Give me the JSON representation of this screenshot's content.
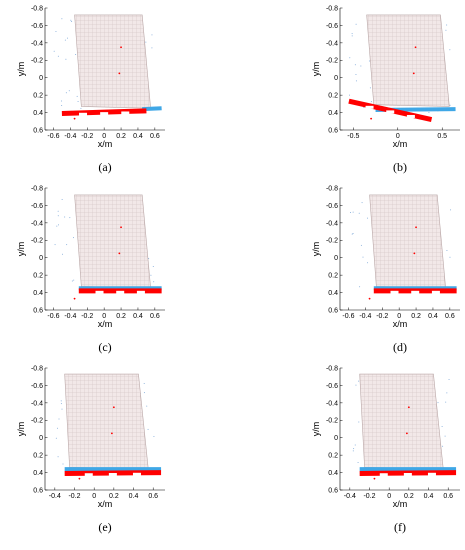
{
  "chart_data": [
    {
      "type": "scatter",
      "label": "(a)",
      "xlabel": "x/m",
      "ylabel": "y/m",
      "xlim": [
        -0.7,
        0.72
      ],
      "ylim": [
        0.6,
        -0.8
      ],
      "xticks": [
        -0.6,
        -0.4,
        -0.2,
        0,
        0.2,
        0.4,
        0.6
      ],
      "yticks": [
        -0.8,
        -0.6,
        -0.4,
        -0.2,
        0,
        0.2,
        0.4,
        0.6
      ],
      "plate": [
        [
          -0.35,
          -0.72
        ],
        [
          0.45,
          -0.72
        ],
        [
          0.55,
          0.35
        ],
        [
          -0.27,
          0.33
        ]
      ],
      "pallet": {
        "color": "#ff0000",
        "segments": [
          [
            -0.5,
            0.41,
            0.5,
            0.38
          ]
        ]
      },
      "side": {
        "color": "#3fa7e6",
        "segments": [
          [
            0.45,
            0.36,
            0.68,
            0.35
          ]
        ]
      },
      "grid": false,
      "legend": "none"
    },
    {
      "type": "scatter",
      "label": "(b)",
      "xlabel": "x/m",
      "ylabel": "y/m",
      "xlim": [
        -0.65,
        0.7
      ],
      "ylim": [
        0.6,
        -0.8
      ],
      "xticks": [
        -0.5,
        0,
        0.5
      ],
      "yticks": [
        -0.8,
        -0.6,
        -0.4,
        -0.2,
        0,
        0.2,
        0.4,
        0.6
      ],
      "plate": [
        [
          -0.35,
          -0.72
        ],
        [
          0.48,
          -0.72
        ],
        [
          0.58,
          0.33
        ],
        [
          -0.27,
          0.31
        ]
      ],
      "pallet": {
        "color": "#ff0000",
        "segments": [
          [
            -0.55,
            0.27,
            0.38,
            0.48
          ]
        ]
      },
      "side": {
        "color": "#3fa7e6",
        "segments": [
          [
            -0.25,
            0.37,
            0.65,
            0.36
          ]
        ]
      },
      "grid": false,
      "legend": "none"
    },
    {
      "type": "scatter",
      "label": "(c)",
      "xlabel": "x/m",
      "ylabel": "y/m",
      "xlim": [
        -0.7,
        0.72
      ],
      "ylim": [
        0.6,
        -0.8
      ],
      "xticks": [
        -0.6,
        -0.4,
        -0.2,
        0,
        0.2,
        0.4,
        0.6
      ],
      "yticks": [
        -0.8,
        -0.6,
        -0.4,
        -0.2,
        0,
        0.2,
        0.4,
        0.6
      ],
      "plate": [
        [
          -0.35,
          -0.72
        ],
        [
          0.45,
          -0.72
        ],
        [
          0.55,
          0.35
        ],
        [
          -0.27,
          0.33
        ]
      ],
      "pallet": {
        "color": "#ff0000",
        "segments": [
          [
            -0.3,
            0.38,
            0.68,
            0.38
          ]
        ]
      },
      "side": {
        "color": "#3fa7e6",
        "segments": [
          [
            -0.3,
            0.35,
            0.68,
            0.35
          ]
        ]
      },
      "grid": false,
      "legend": "none"
    },
    {
      "type": "scatter",
      "label": "(d)",
      "xlabel": "x/m",
      "ylabel": "y/m",
      "xlim": [
        -0.7,
        0.72
      ],
      "ylim": [
        0.6,
        -0.8
      ],
      "xticks": [
        -0.6,
        -0.4,
        -0.2,
        0,
        0.2,
        0.4,
        0.6
      ],
      "yticks": [
        -0.8,
        -0.6,
        -0.4,
        -0.2,
        0,
        0.2,
        0.4,
        0.6
      ],
      "plate": [
        [
          -0.35,
          -0.72
        ],
        [
          0.45,
          -0.72
        ],
        [
          0.55,
          0.35
        ],
        [
          -0.27,
          0.33
        ]
      ],
      "pallet": {
        "color": "#ff0000",
        "segments": [
          [
            -0.3,
            0.38,
            0.68,
            0.38
          ]
        ]
      },
      "side": {
        "color": "#3fa7e6",
        "segments": [
          [
            -0.3,
            0.35,
            0.68,
            0.35
          ]
        ]
      },
      "grid": false,
      "legend": "none"
    },
    {
      "type": "scatter",
      "label": "(e)",
      "xlabel": "x/m",
      "ylabel": "y/m",
      "xlim": [
        -0.5,
        0.72
      ],
      "ylim": [
        0.6,
        -0.8
      ],
      "xticks": [
        -0.4,
        -0.2,
        0,
        0.2,
        0.4,
        0.6
      ],
      "yticks": [
        -0.8,
        -0.6,
        -0.4,
        -0.2,
        0,
        0.2,
        0.4,
        0.6
      ],
      "plate": [
        [
          -0.3,
          -0.73
        ],
        [
          0.45,
          -0.73
        ],
        [
          0.55,
          0.36
        ],
        [
          -0.25,
          0.34
        ]
      ],
      "pallet": {
        "color": "#ff0000",
        "segments": [
          [
            -0.3,
            0.41,
            0.68,
            0.4
          ]
        ]
      },
      "side": {
        "color": "#3fa7e6",
        "segments": [
          [
            -0.3,
            0.36,
            0.68,
            0.36
          ]
        ]
      },
      "grid": false,
      "legend": "none"
    },
    {
      "type": "scatter",
      "label": "(f)",
      "xlabel": "x/m",
      "ylabel": "y/m",
      "xlim": [
        -0.5,
        0.72
      ],
      "ylim": [
        0.6,
        -0.8
      ],
      "xticks": [
        -0.4,
        -0.2,
        0,
        0.2,
        0.4,
        0.6
      ],
      "yticks": [
        -0.8,
        -0.6,
        -0.4,
        -0.2,
        0,
        0.2,
        0.4,
        0.6
      ],
      "plate": [
        [
          -0.3,
          -0.73
        ],
        [
          0.45,
          -0.73
        ],
        [
          0.55,
          0.36
        ],
        [
          -0.25,
          0.34
        ]
      ],
      "pallet": {
        "color": "#ff0000",
        "segments": [
          [
            -0.3,
            0.41,
            0.68,
            0.4
          ]
        ]
      },
      "side": {
        "color": "#3fa7e6",
        "segments": [
          [
            -0.3,
            0.36,
            0.68,
            0.36
          ]
        ]
      },
      "grid": false,
      "legend": "none"
    }
  ]
}
